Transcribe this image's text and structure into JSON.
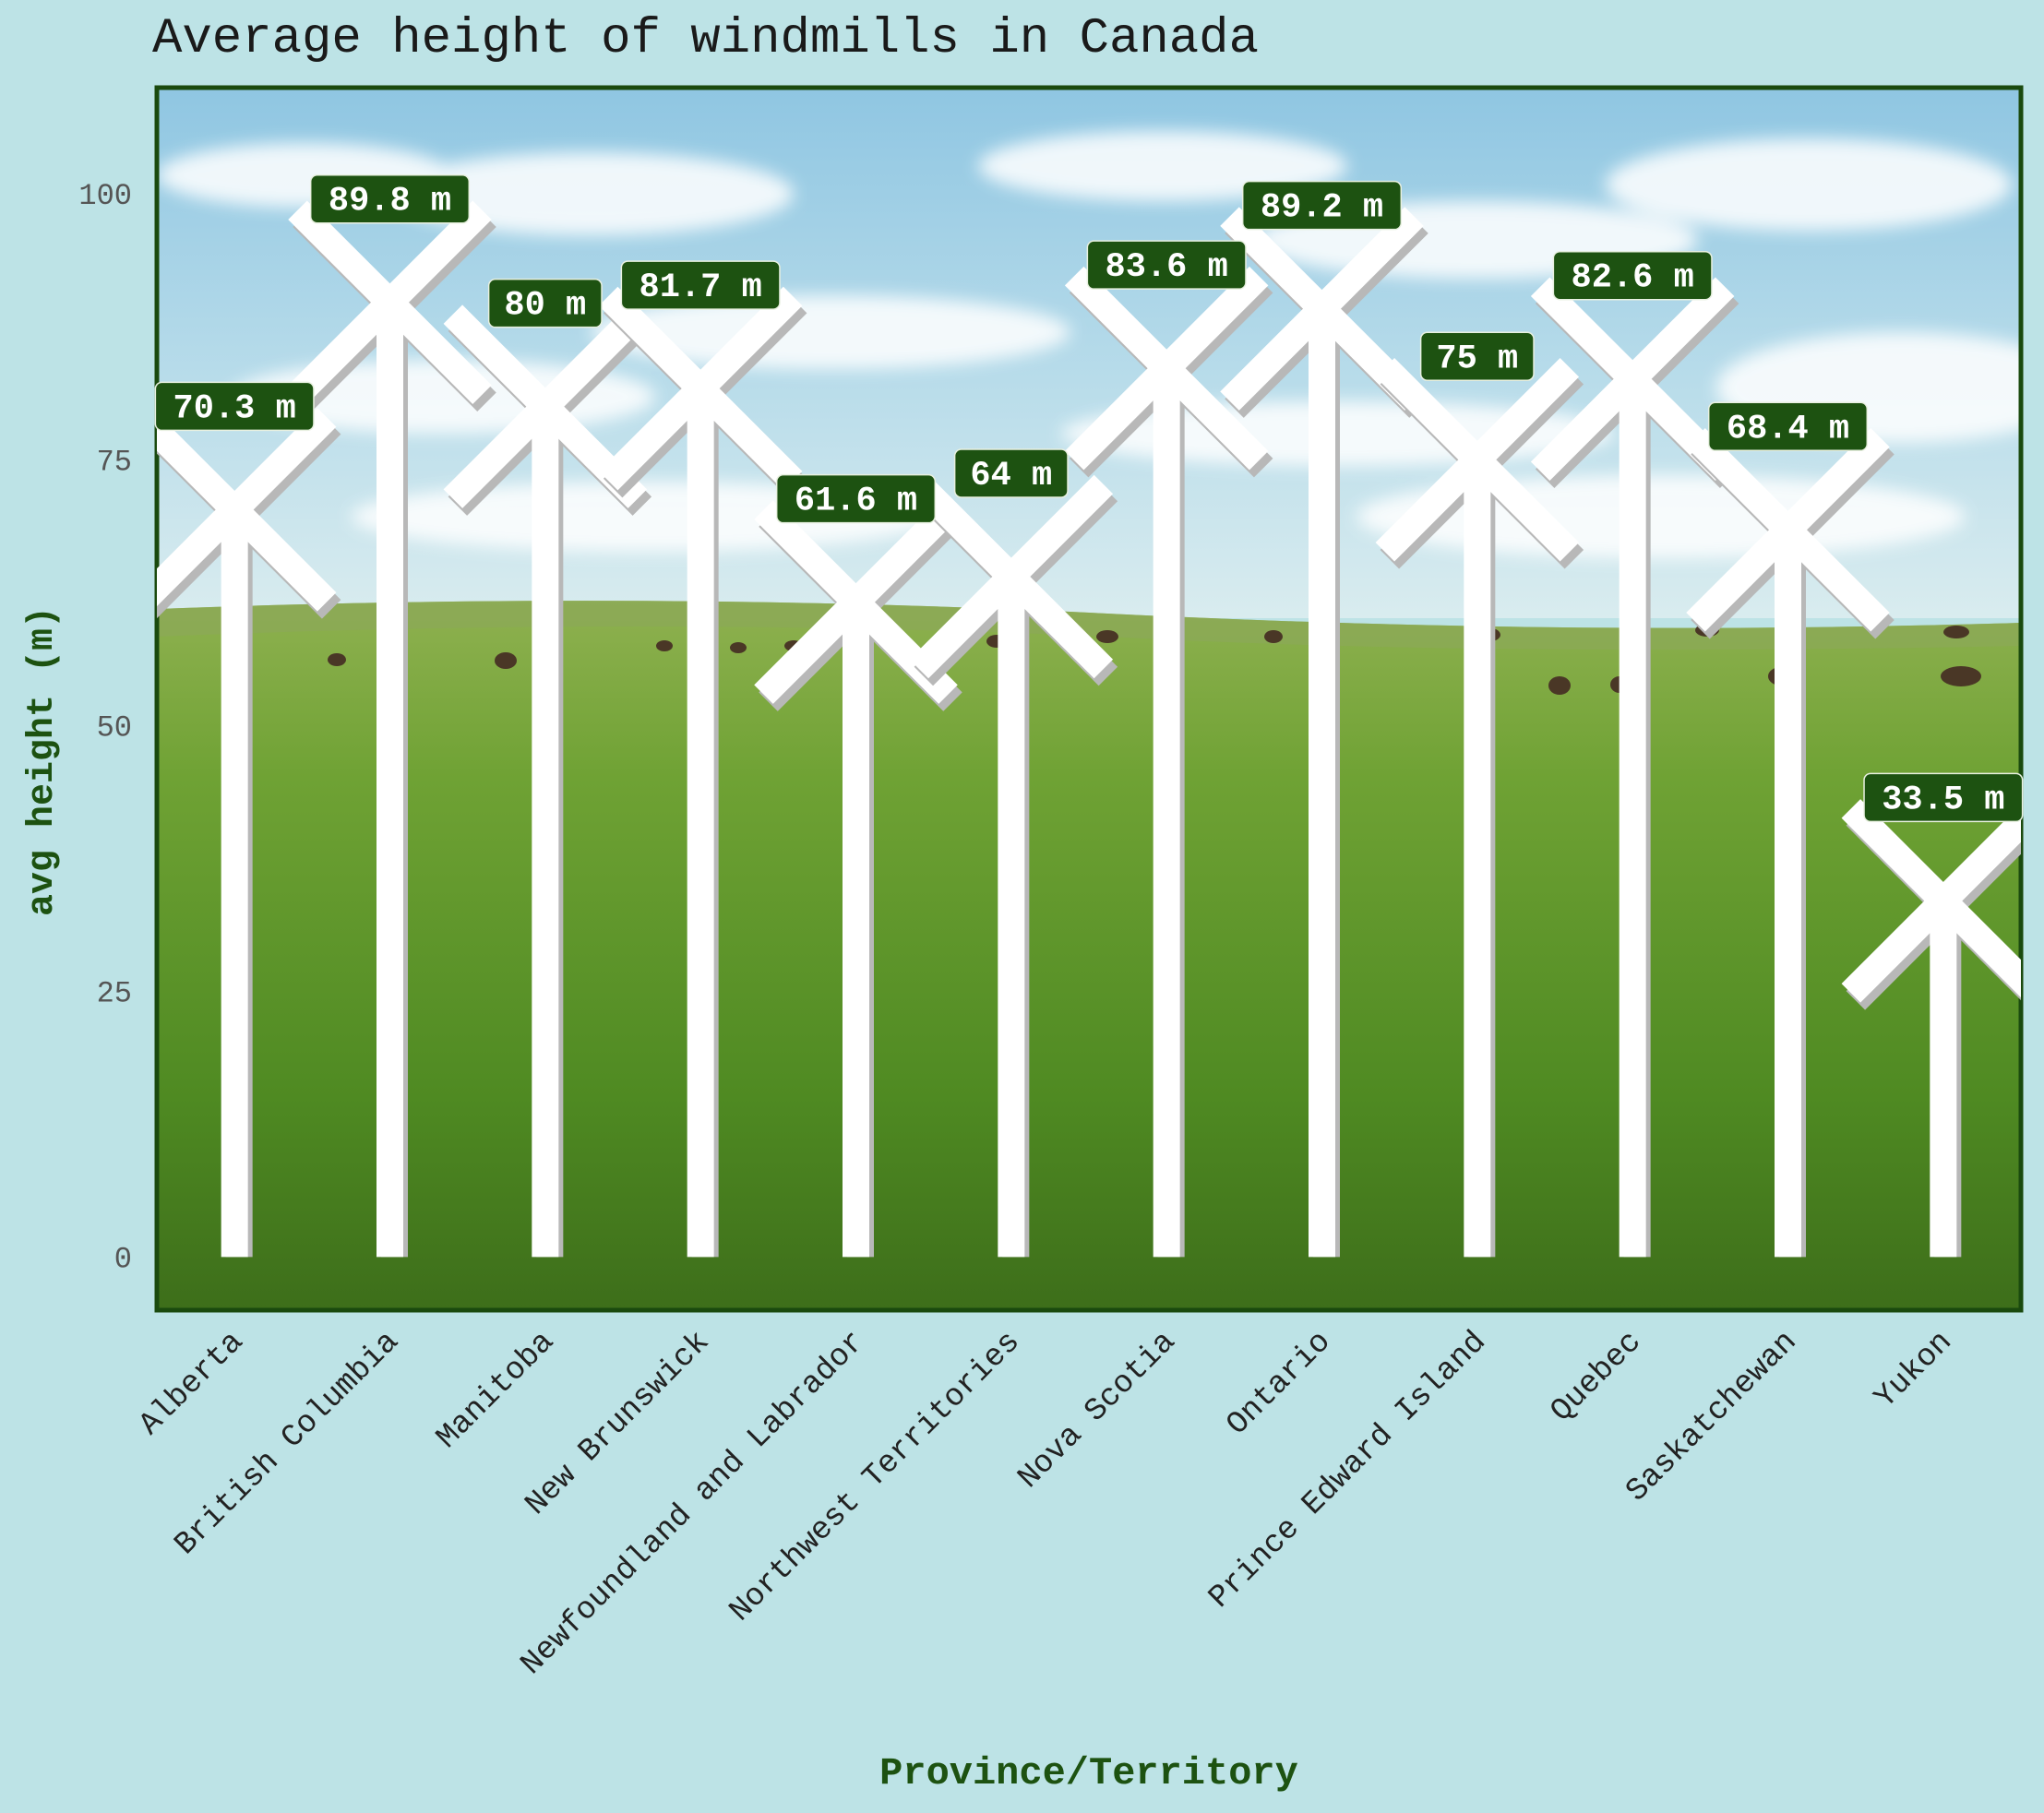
{
  "chart_data": {
    "type": "bar",
    "title": "Average height of windmills in Canada",
    "xlabel": "Province/Territory",
    "ylabel": "avg height (m)",
    "ylim": [
      -5,
      110
    ],
    "yticks": [
      0,
      25,
      50,
      75,
      100
    ],
    "value_suffix": " m",
    "categories": [
      "Alberta",
      "British Columbia",
      "Manitoba",
      "New Brunswick",
      "Newfoundland and Labrador",
      "Northwest Territories",
      "Nova Scotia",
      "Ontario",
      "Prince Edward Island",
      "Quebec",
      "Saskatchewan",
      "Yukon"
    ],
    "values": [
      70.3,
      89.8,
      80,
      81.7,
      61.6,
      64,
      83.6,
      89.2,
      75,
      82.6,
      68.4,
      33.5
    ],
    "bar_style": "windmill",
    "background": "photo of green grassland with bison under a cloudy blue sky",
    "grid": false,
    "legend": "none",
    "colors": {
      "page_bg": "#bde3e6",
      "panel_border": "#1a4a0e",
      "label_bg": "#1d5211",
      "label_text": "#ffffff",
      "axis_title": "#1d5211",
      "tick_text": "#555555",
      "windmill": "#ffffff",
      "windmill_shadow": "#b8b8b8"
    }
  }
}
